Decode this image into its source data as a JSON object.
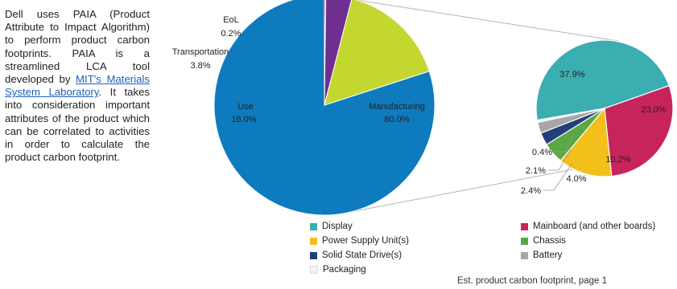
{
  "description": {
    "pre": "Dell uses PAIA (Product Attribute to Impact Algorithm) to perform product carbon footprints. PAIA is a streamlined LCA tool developed by ",
    "link": "MIT's Materials System Laboratory",
    "post": ". It takes into consideration important attributes of the product which can be correlated to activities in order to calculate the product carbon footprint."
  },
  "caption": "Est. product carbon footprint, page 1",
  "chart_data": [
    {
      "type": "pie",
      "title": "",
      "slices": [
        {
          "label": "Manufacturing",
          "value": 80.0,
          "display": "80.0%",
          "color": "#0e7bbf"
        },
        {
          "label": "EoL",
          "value": 0.2,
          "display": "0.2%",
          "color": "#c8245a"
        },
        {
          "label": "Transportation",
          "value": 3.8,
          "display": "3.8%",
          "color": "#6e2f8f"
        },
        {
          "label": "Use",
          "value": 16.0,
          "display": "16.0%",
          "color": "#c4d630"
        }
      ]
    },
    {
      "type": "pie",
      "title": "",
      "slices": [
        {
          "label": "Display",
          "value": 37.9,
          "display": "37.9%",
          "color": "#3aaeb0"
        },
        {
          "label": "Mainboard (and other boards)",
          "value": 23.0,
          "display": "23.0%",
          "color": "#c7245c"
        },
        {
          "label": "Power Supply Unit(s)",
          "value": 10.2,
          "display": "10.2%",
          "color": "#f3bf1b"
        },
        {
          "label": "Chassis",
          "value": 4.0,
          "display": "4.0%",
          "color": "#5aa843"
        },
        {
          "label": "Solid State Drive(s)",
          "value": 2.4,
          "display": "2.4%",
          "color": "#233f7a"
        },
        {
          "label": "Battery",
          "value": 2.1,
          "display": "2.1%",
          "color": "#a7a7a7"
        },
        {
          "label": "Packaging",
          "value": 0.4,
          "display": "0.4%",
          "color": "#f2f2f2"
        }
      ],
      "legend": [
        "Display",
        "Mainboard (and other boards)",
        "Power Supply Unit(s)",
        "Chassis",
        "Solid State Drive(s)",
        "Battery",
        "Packaging"
      ]
    }
  ]
}
